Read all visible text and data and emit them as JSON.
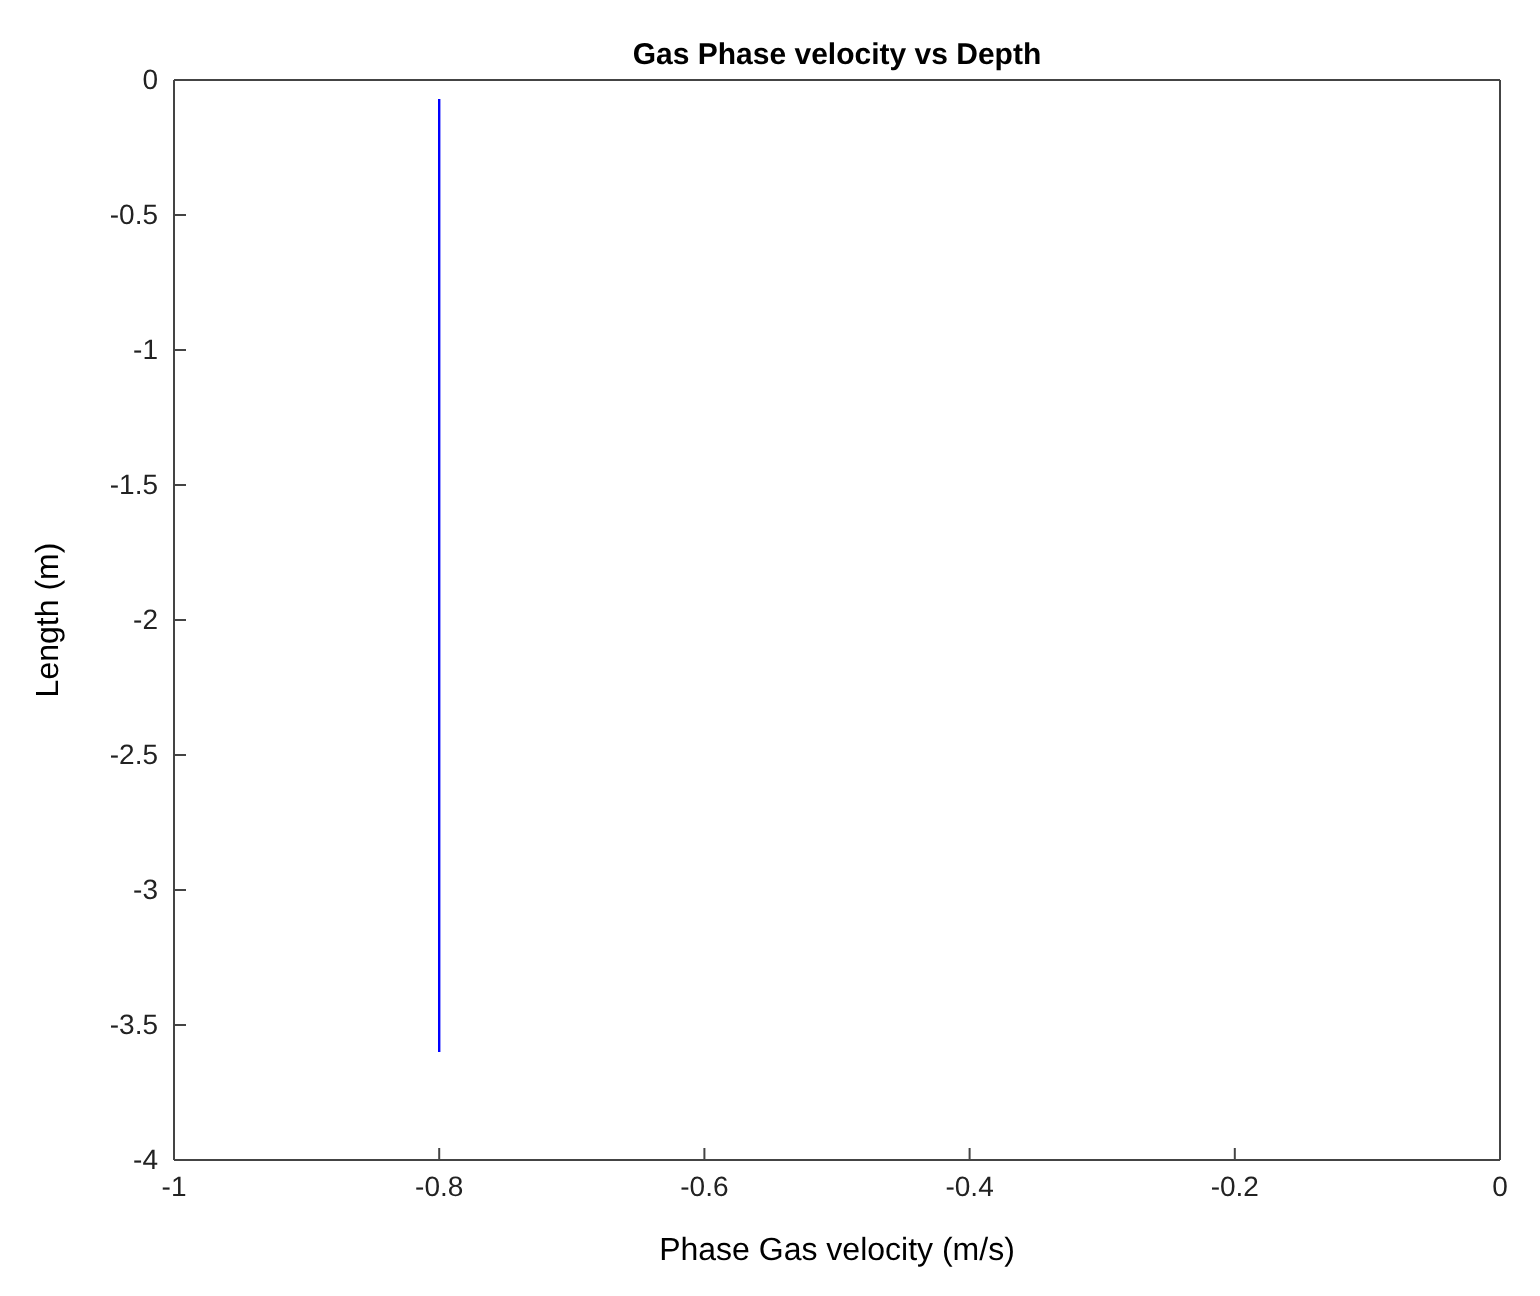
{
  "chart_data": {
    "type": "line",
    "title": "Gas Phase velocity vs Depth",
    "xlabel": "Phase Gas velocity (m/s)",
    "ylabel": "Length (m)",
    "series": [
      {
        "color": "#0000ff",
        "x": [
          -0.8,
          -0.8
        ],
        "values": [
          -0.07,
          -3.6
        ]
      }
    ],
    "xlim": [
      -1,
      0
    ],
    "xticks": [
      -1,
      -0.8,
      -0.6,
      -0.4,
      -0.2,
      0
    ],
    "ylim": [
      -4,
      0
    ],
    "yticks": [
      -4,
      -3.5,
      -3,
      -2.5,
      -2,
      -1.5,
      -1,
      -0.5,
      0
    ],
    "grid": false,
    "line_style": "solid",
    "marker": "none"
  }
}
